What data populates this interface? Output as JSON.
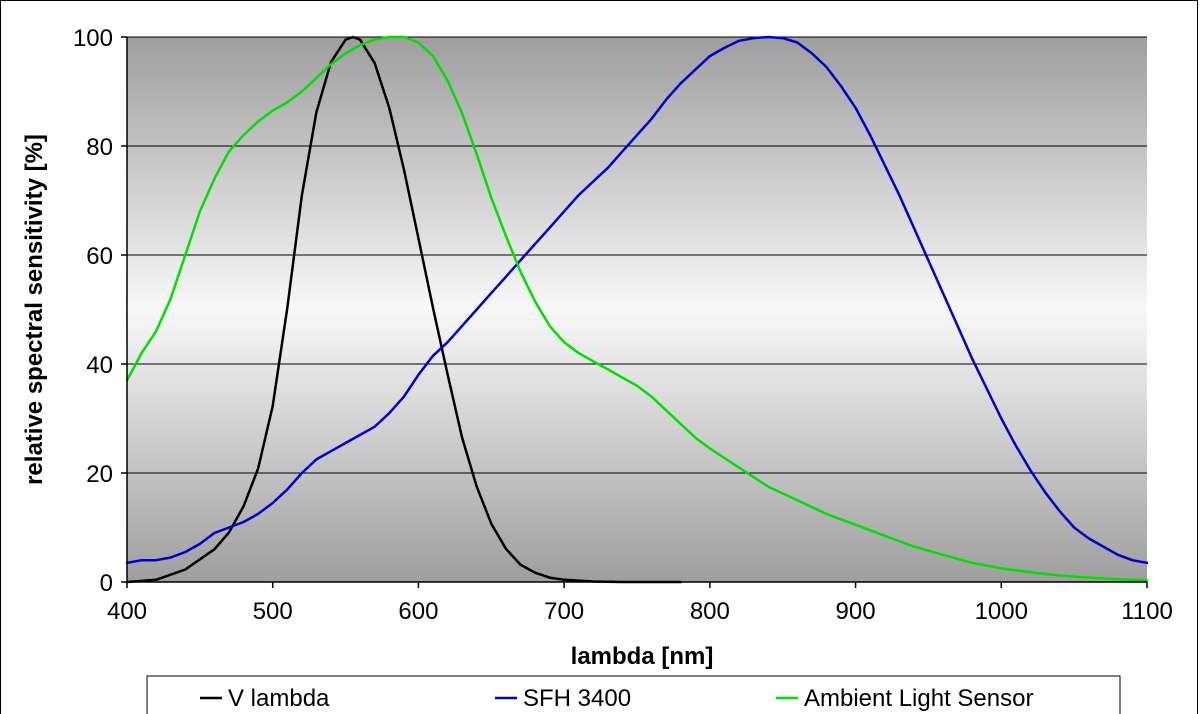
{
  "chart_data": {
    "type": "line",
    "xlabel": "lambda [nm]",
    "ylabel": "relative spectral sensitivity [%]",
    "xlim": [
      400,
      1100
    ],
    "ylim": [
      0,
      100
    ],
    "x_ticks": [
      400,
      500,
      600,
      700,
      800,
      900,
      1000,
      1100
    ],
    "y_ticks": [
      0,
      20,
      40,
      60,
      80,
      100
    ],
    "grid": "horizontal",
    "background": "gray gradient",
    "legend_position": "bottom",
    "series": [
      {
        "name": "V lambda",
        "color": "#000000",
        "x": [
          400,
          420,
          440,
          460,
          470,
          480,
          490,
          500,
          510,
          520,
          530,
          540,
          550,
          555,
          560,
          570,
          580,
          590,
          600,
          610,
          620,
          630,
          640,
          650,
          660,
          670,
          680,
          690,
          700,
          720,
          740,
          760,
          780
        ],
        "y": [
          0.0,
          0.4,
          2.3,
          6.0,
          9.1,
          13.9,
          20.8,
          32.3,
          50.3,
          71.0,
          86.2,
          95.4,
          99.5,
          100.0,
          99.5,
          95.2,
          87.0,
          75.7,
          63.1,
          50.3,
          38.1,
          26.5,
          17.5,
          10.7,
          6.1,
          3.2,
          1.7,
          0.8,
          0.4,
          0.1,
          0.0,
          0.0,
          0.0
        ]
      },
      {
        "name": "SFH 3400",
        "color": "#0000cc",
        "x": [
          400,
          410,
          420,
          430,
          440,
          450,
          460,
          470,
          480,
          490,
          500,
          510,
          520,
          530,
          540,
          550,
          560,
          570,
          580,
          590,
          600,
          610,
          620,
          630,
          640,
          650,
          660,
          670,
          680,
          690,
          700,
          710,
          720,
          730,
          740,
          750,
          760,
          770,
          780,
          790,
          800,
          810,
          820,
          830,
          840,
          850,
          860,
          870,
          880,
          890,
          900,
          910,
          920,
          930,
          940,
          950,
          960,
          970,
          980,
          990,
          1000,
          1010,
          1020,
          1030,
          1040,
          1050,
          1060,
          1070,
          1080,
          1090,
          1100
        ],
        "y": [
          3.5,
          4,
          4,
          4.5,
          5.5,
          7,
          9,
          10,
          11,
          12.5,
          14.5,
          17,
          20,
          22.5,
          24,
          25.5,
          27,
          28.5,
          31,
          34,
          38,
          41.5,
          44,
          47,
          50,
          53,
          56,
          59,
          62,
          65,
          68,
          71,
          73.5,
          76,
          79,
          82,
          85,
          88.5,
          91.5,
          94,
          96.5,
          98,
          99.3,
          99.8,
          100,
          99.8,
          99,
          97,
          94.5,
          91,
          87,
          82,
          76.5,
          71,
          65,
          59,
          53,
          47,
          41,
          35.5,
          30,
          25,
          20.5,
          16.5,
          13,
          10,
          8,
          6.5,
          5,
          4,
          3.5
        ]
      },
      {
        "name": "Ambient Light Sensor",
        "color": "#00e000",
        "x": [
          400,
          410,
          420,
          430,
          440,
          450,
          460,
          470,
          480,
          490,
          500,
          510,
          520,
          530,
          540,
          550,
          560,
          570,
          580,
          590,
          600,
          610,
          620,
          630,
          640,
          650,
          660,
          670,
          680,
          690,
          700,
          710,
          720,
          730,
          740,
          750,
          760,
          770,
          780,
          790,
          800,
          820,
          840,
          860,
          880,
          900,
          920,
          940,
          960,
          980,
          1000,
          1020,
          1040,
          1060,
          1080,
          1100
        ],
        "y": [
          37,
          42,
          46,
          52,
          60,
          68,
          74,
          79,
          82,
          84.5,
          86.5,
          88,
          90,
          92.5,
          95,
          97,
          98.5,
          99.5,
          100,
          100,
          99,
          96.5,
          92,
          86,
          78.5,
          70.5,
          63.5,
          57,
          51.5,
          47,
          44,
          42,
          40.5,
          39,
          37.5,
          36,
          34,
          31.5,
          29,
          26.5,
          24.5,
          21,
          17.5,
          15,
          12.5,
          10.5,
          8.5,
          6.5,
          5,
          3.5,
          2.5,
          1.8,
          1.2,
          0.8,
          0.5,
          0.3
        ]
      }
    ]
  }
}
